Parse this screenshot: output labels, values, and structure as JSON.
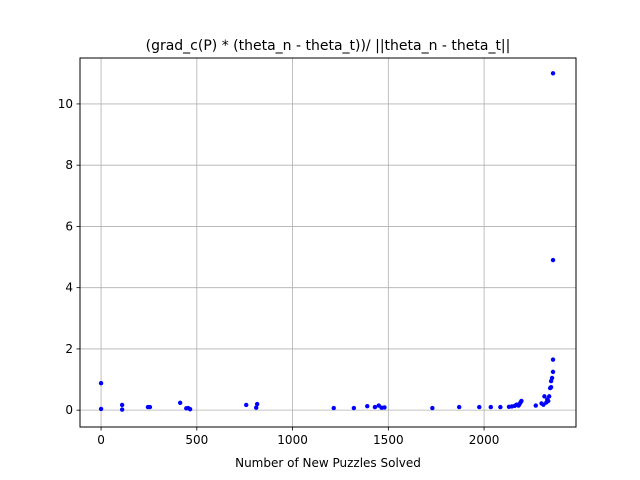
{
  "chart_data": {
    "type": "scatter",
    "title": "(grad_c(P) * (theta_n - theta_t))/ ||theta_n - theta_t||",
    "xlabel": "Number of New Puzzles Solved",
    "ylabel": "",
    "xlim": [
      -110,
      2480
    ],
    "ylim": [
      -0.55,
      11.5
    ],
    "xticks": [
      0,
      500,
      1000,
      1500,
      2000
    ],
    "yticks": [
      0,
      2,
      4,
      6,
      8,
      10
    ],
    "grid": true,
    "marker_color": "#0000ff",
    "points": [
      {
        "x": 0,
        "y": 0.88
      },
      {
        "x": 0,
        "y": 0.04
      },
      {
        "x": 110,
        "y": 0.17
      },
      {
        "x": 110,
        "y": 0.02
      },
      {
        "x": 245,
        "y": 0.1
      },
      {
        "x": 255,
        "y": 0.1
      },
      {
        "x": 413,
        "y": 0.24
      },
      {
        "x": 445,
        "y": 0.06
      },
      {
        "x": 455,
        "y": 0.07
      },
      {
        "x": 465,
        "y": 0.03
      },
      {
        "x": 758,
        "y": 0.17
      },
      {
        "x": 810,
        "y": 0.08
      },
      {
        "x": 815,
        "y": 0.2
      },
      {
        "x": 1215,
        "y": 0.07
      },
      {
        "x": 1320,
        "y": 0.07
      },
      {
        "x": 1390,
        "y": 0.13
      },
      {
        "x": 1430,
        "y": 0.1
      },
      {
        "x": 1450,
        "y": 0.15
      },
      {
        "x": 1465,
        "y": 0.08
      },
      {
        "x": 1480,
        "y": 0.09
      },
      {
        "x": 1730,
        "y": 0.07
      },
      {
        "x": 1870,
        "y": 0.1
      },
      {
        "x": 1975,
        "y": 0.1
      },
      {
        "x": 2035,
        "y": 0.1
      },
      {
        "x": 2085,
        "y": 0.1
      },
      {
        "x": 2130,
        "y": 0.11
      },
      {
        "x": 2145,
        "y": 0.12
      },
      {
        "x": 2160,
        "y": 0.14
      },
      {
        "x": 2170,
        "y": 0.18
      },
      {
        "x": 2180,
        "y": 0.15
      },
      {
        "x": 2185,
        "y": 0.2
      },
      {
        "x": 2190,
        "y": 0.25
      },
      {
        "x": 2195,
        "y": 0.3
      },
      {
        "x": 2270,
        "y": 0.15
      },
      {
        "x": 2300,
        "y": 0.22
      },
      {
        "x": 2310,
        "y": 0.18
      },
      {
        "x": 2315,
        "y": 0.45
      },
      {
        "x": 2325,
        "y": 0.25
      },
      {
        "x": 2330,
        "y": 0.35
      },
      {
        "x": 2335,
        "y": 0.3
      },
      {
        "x": 2340,
        "y": 0.45
      },
      {
        "x": 2345,
        "y": 0.72
      },
      {
        "x": 2350,
        "y": 0.75
      },
      {
        "x": 2350,
        "y": 0.95
      },
      {
        "x": 2355,
        "y": 1.05
      },
      {
        "x": 2360,
        "y": 1.25
      },
      {
        "x": 2360,
        "y": 1.65
      },
      {
        "x": 2360,
        "y": 4.9
      },
      {
        "x": 2360,
        "y": 11.0
      }
    ]
  }
}
